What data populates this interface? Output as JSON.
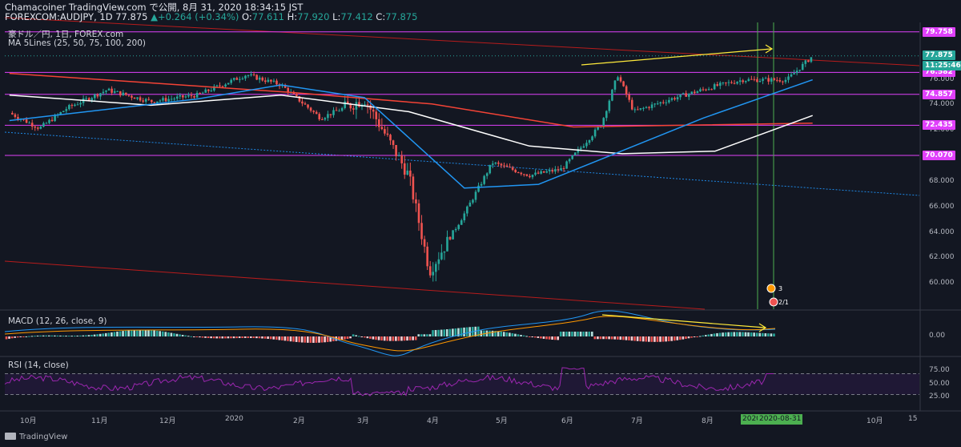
{
  "header": {
    "line1": "Chamacoiner TradingView.com で公開, 8月 31, 2020 18:34:15 JST",
    "symbol": "FOREXCOM:AUDJPY, 1D",
    "last": "77.875",
    "change": "+0.264 (+0.34%)",
    "o_label": "O:",
    "o": "77.611",
    "h_label": "H:",
    "h": "77.920",
    "l_label": "L:",
    "l": "77.412",
    "c_label": "C:",
    "c": "77.875"
  },
  "overlays": {
    "title": "豪ドル／円, 1日, FOREX.com",
    "ma": "MA 5Lines (25, 50, 75, 100, 200)"
  },
  "macd": {
    "label": "MACD (12, 26, close, 9)",
    "zero_tick": "0.00"
  },
  "rsi": {
    "label": "RSI (14, close)",
    "ticks": [
      "75.00",
      "50.00",
      "25.00"
    ]
  },
  "price_axis": {
    "ticks": [
      "76.000",
      "74.000",
      "72.000",
      "70.000",
      "68.000",
      "66.000",
      "64.000",
      "62.000",
      "60.000"
    ],
    "levels": [
      {
        "value": "79.758",
        "price": 79.758,
        "color": "#e040fb"
      },
      {
        "value": "76.582",
        "price": 76.582,
        "color": "#e040fb"
      },
      {
        "value": "74.857",
        "price": 74.857,
        "color": "#e040fb"
      },
      {
        "value": "72.435",
        "price": 72.435,
        "color": "#e040fb"
      },
      {
        "value": "70.070",
        "price": 70.07,
        "color": "#e040fb"
      }
    ],
    "last_price": "77.875",
    "countdown": "11:25:46"
  },
  "time_axis": {
    "labels": [
      "10月",
      "11月",
      "12月",
      "2020",
      "2月",
      "3月",
      "4月",
      "5月",
      "6月",
      "7月",
      "8月",
      "15",
      "10月",
      "15"
    ],
    "selected_labels": [
      "2020",
      "2020-08-31"
    ]
  },
  "events": {
    "badge1": "3",
    "badge2": "2/1"
  },
  "branding": {
    "name": "TradingView"
  },
  "colors": {
    "background": "#131722",
    "up": "#26a69a",
    "down": "#ef5350",
    "horizontal_levels": "#e040fb",
    "ma25": "#2196f3",
    "ma75": "#ffffff",
    "ma200": "#f44336",
    "trend_annotation": "#ffeb3b",
    "vertical_lines": "#4caf50",
    "rsi": "#9c27b0"
  },
  "chart_data": {
    "type": "candlestick",
    "symbol": "FOREXCOM:AUDJPY",
    "interval": "1D",
    "y_axis_range": [
      58,
      80.5
    ],
    "ohlc_last": {
      "open": 77.611,
      "high": 77.92,
      "low": 77.412,
      "close": 77.875
    },
    "close_path_approx": [
      {
        "date": "2019-09-20",
        "close": 73.4
      },
      {
        "date": "2019-10-03",
        "close": 72.2
      },
      {
        "date": "2019-10-15",
        "close": 73.8
      },
      {
        "date": "2019-11-01",
        "close": 75.2
      },
      {
        "date": "2019-11-20",
        "close": 74.3
      },
      {
        "date": "2019-12-10",
        "close": 74.8
      },
      {
        "date": "2019-12-31",
        "close": 76.4
      },
      {
        "date": "2020-01-15",
        "close": 75.6
      },
      {
        "date": "2020-02-01",
        "close": 73.0
      },
      {
        "date": "2020-02-20",
        "close": 74.5
      },
      {
        "date": "2020-02-28",
        "close": 72.0
      },
      {
        "date": "2020-03-10",
        "close": 68.5
      },
      {
        "date": "2020-03-19",
        "close": 61.0
      },
      {
        "date": "2020-04-03",
        "close": 65.5
      },
      {
        "date": "2020-04-15",
        "close": 69.5
      },
      {
        "date": "2020-05-01",
        "close": 68.5
      },
      {
        "date": "2020-05-15",
        "close": 69.0
      },
      {
        "date": "2020-06-01",
        "close": 72.5
      },
      {
        "date": "2020-06-08",
        "close": 76.4
      },
      {
        "date": "2020-06-15",
        "close": 73.5
      },
      {
        "date": "2020-07-01",
        "close": 74.5
      },
      {
        "date": "2020-07-20",
        "close": 75.5
      },
      {
        "date": "2020-08-01",
        "close": 76.0
      },
      {
        "date": "2020-08-20",
        "close": 76.0
      },
      {
        "date": "2020-08-31",
        "close": 77.875
      }
    ],
    "moving_averages": {
      "ma25": [
        {
          "date": "2019-09-20",
          "close": 72.8
        },
        {
          "date": "2019-12-10",
          "close": 74.5
        },
        {
          "date": "2020-01-15",
          "close": 75.6
        },
        {
          "date": "2020-02-20",
          "close": 74.6
        },
        {
          "date": "2020-04-03",
          "close": 67.5
        },
        {
          "date": "2020-05-05",
          "close": 67.8
        },
        {
          "date": "2020-06-15",
          "close": 70.8
        },
        {
          "date": "2020-07-15",
          "close": 73.0
        },
        {
          "date": "2020-08-31",
          "close": 76.0
        }
      ],
      "ma75": [
        {
          "date": "2019-09-20",
          "close": 74.8
        },
        {
          "date": "2019-11-20",
          "close": 74.0
        },
        {
          "date": "2020-01-15",
          "close": 74.8
        },
        {
          "date": "2020-03-10",
          "close": 73.5
        },
        {
          "date": "2020-05-01",
          "close": 70.8
        },
        {
          "date": "2020-06-10",
          "close": 70.2
        },
        {
          "date": "2020-07-20",
          "close": 70.4
        },
        {
          "date": "2020-08-31",
          "close": 73.2
        }
      ],
      "ma200": [
        {
          "date": "2019-09-20",
          "close": 76.5
        },
        {
          "date": "2020-01-20",
          "close": 75.0
        },
        {
          "date": "2020-03-20",
          "close": 74.1
        },
        {
          "date": "2020-05-20",
          "close": 72.3
        },
        {
          "date": "2020-08-31",
          "close": 72.6
        }
      ]
    },
    "horizontal_levels": [
      79.758,
      76.582,
      74.857,
      72.435,
      70.07
    ]
  }
}
